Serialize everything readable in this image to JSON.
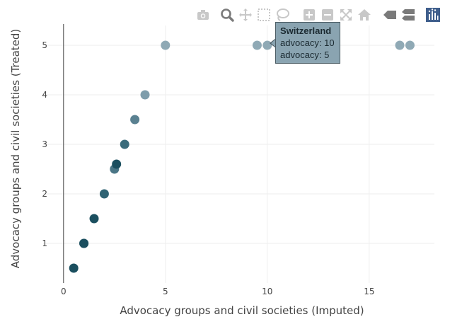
{
  "chart_data": {
    "type": "scatter",
    "xlabel": "Advocacy groups and civil societies (Imputed)",
    "ylabel": "Advocacy groups and civil societies (Treated)",
    "xlim": [
      -1,
      18.2
    ],
    "ylim": [
      0.2,
      5.4
    ],
    "xticks": [
      0,
      5,
      10,
      15
    ],
    "yticks": [
      1,
      2,
      3,
      4,
      5
    ],
    "grid": true,
    "points": [
      {
        "x": 0.5,
        "y": 0.5,
        "color": "#1b4f5f"
      },
      {
        "x": 1,
        "y": 1,
        "color": "#1b4f5f"
      },
      {
        "x": 1,
        "y": 1,
        "color": "#1b4f5f"
      },
      {
        "x": 1.5,
        "y": 1.5,
        "color": "#1b4f5f"
      },
      {
        "x": 2,
        "y": 2,
        "color": "#2f6373"
      },
      {
        "x": 2.5,
        "y": 2.5,
        "color": "#4a7686"
      },
      {
        "x": 2.6,
        "y": 2.6,
        "color": "#1b4f5f"
      },
      {
        "x": 3,
        "y": 3,
        "color": "#3a6b7b"
      },
      {
        "x": 3.5,
        "y": 3.5,
        "color": "#5a8191"
      },
      {
        "x": 4,
        "y": 4,
        "color": "#7e9dab"
      },
      {
        "x": 5,
        "y": 5,
        "color": "#8fa9b5"
      },
      {
        "x": 9.5,
        "y": 5,
        "color": "#8fa9b5"
      },
      {
        "x": 10,
        "y": 5,
        "color": "#8fa9b5"
      },
      {
        "x": 16.5,
        "y": 5,
        "color": "#8fa9b5"
      },
      {
        "x": 17,
        "y": 5,
        "color": "#8fa9b5"
      }
    ],
    "hover": {
      "title": "Switzerland",
      "line1": "advocacy: 10",
      "line2": "advocacy: 5"
    }
  },
  "colors": {
    "grid": "#eeeeee",
    "axis_line": "#444444",
    "text": "#444444",
    "modebar_icon": "#c8c8c8",
    "modebar_icon_active": "#8a8a8a",
    "logo_bg": "#3f5e8c"
  },
  "modebar": [
    {
      "name": "camera-icon",
      "title": "Download plot as a png"
    },
    {
      "name": "zoom-icon",
      "title": "Zoom"
    },
    {
      "name": "pan-icon",
      "title": "Pan"
    },
    {
      "name": "box-select-icon",
      "title": "Box Select"
    },
    {
      "name": "lasso-select-icon",
      "title": "Lasso Select"
    },
    {
      "name": "zoom-in-icon",
      "title": "Zoom in"
    },
    {
      "name": "zoom-out-icon",
      "title": "Zoom out"
    },
    {
      "name": "autoscale-icon",
      "title": "Autoscale"
    },
    {
      "name": "reset-axes-icon",
      "title": "Reset axes"
    },
    {
      "name": "spike-lines-icon",
      "title": "Show closest data on hover"
    },
    {
      "name": "compare-icon",
      "title": "Compare data on hover"
    },
    {
      "name": "plotly-logo-icon",
      "title": "Produced with Plotly"
    }
  ]
}
